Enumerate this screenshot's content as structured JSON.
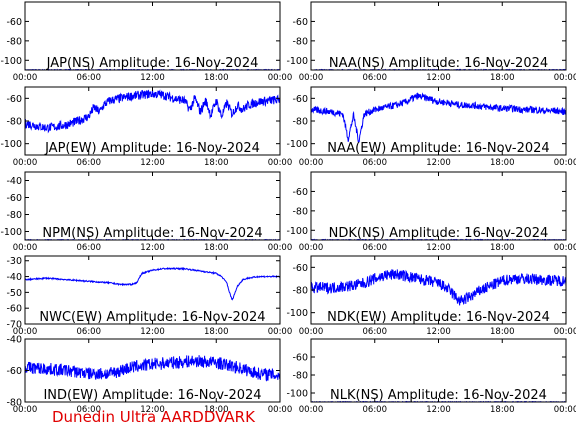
{
  "footer": "Dunedin Ultra AARDDVARK",
  "chart_data": [
    {
      "type": "line",
      "title": "JAP(NS) Amplitude: 16-Nov-2024",
      "yticks": [
        "-60",
        "-80",
        "-100"
      ],
      "ylim": [
        -110,
        -40
      ],
      "xticks": [
        "00:00",
        "06:00",
        "12:00",
        "18:00",
        "00:00"
      ],
      "xlim": [
        0,
        24
      ],
      "color": "#0000ff",
      "series": [
        {
          "x": [
            0,
            24
          ],
          "y": [
            -110,
            -110
          ],
          "noise": 0.5
        }
      ]
    },
    {
      "type": "line",
      "title": "NAA(NS) Amplitude: 16-Nov-2024",
      "yticks": [
        "-60",
        "-80",
        "-100"
      ],
      "ylim": [
        -110,
        -40
      ],
      "xticks": [
        "00:00",
        "06:00",
        "12:00",
        "18:00",
        "00:00"
      ],
      "xlim": [
        0,
        24
      ],
      "color": "#0000ff",
      "series": [
        {
          "x": [
            0,
            24
          ],
          "y": [
            -110,
            -110
          ],
          "noise": 0.5
        }
      ]
    },
    {
      "type": "line",
      "title": "JAP(EW) Amplitude: 16-Nov-2024",
      "yticks": [
        "-60",
        "-80",
        "-100"
      ],
      "ylim": [
        -110,
        -50
      ],
      "xticks": [
        "00:00",
        "06:00",
        "12:00",
        "18:00",
        "00:00"
      ],
      "xlim": [
        0,
        24
      ],
      "color": "#0000ff",
      "series": [
        {
          "x": [
            0,
            1,
            2,
            3,
            4,
            5,
            6,
            6.5,
            7,
            7.5,
            8,
            9,
            10,
            11,
            12,
            13,
            14,
            15,
            15.5,
            16,
            16.5,
            17,
            17.5,
            18,
            18.5,
            19,
            19.5,
            20,
            20.5,
            21,
            22,
            23,
            24
          ],
          "y": [
            -82,
            -84,
            -86,
            -85,
            -83,
            -80,
            -76,
            -68,
            -72,
            -65,
            -62,
            -60,
            -58,
            -57,
            -56,
            -57,
            -60,
            -62,
            -70,
            -60,
            -72,
            -62,
            -75,
            -62,
            -76,
            -64,
            -74,
            -66,
            -70,
            -66,
            -63,
            -62,
            -61
          ],
          "noise": 4
        }
      ]
    },
    {
      "type": "line",
      "title": "NAA(EW) Amplitude: 16-Nov-2024",
      "yticks": [
        "-60",
        "-80",
        "-100"
      ],
      "ylim": [
        -110,
        -50
      ],
      "xticks": [
        "00:00",
        "06:00",
        "12:00",
        "18:00",
        "00:00"
      ],
      "xlim": [
        0,
        24
      ],
      "color": "#0000ff",
      "series": [
        {
          "x": [
            0,
            2,
            3,
            3.5,
            4,
            4.5,
            5,
            6,
            7,
            8,
            9,
            10,
            11,
            12,
            13,
            14,
            15,
            16,
            17,
            18,
            19,
            20,
            21,
            22,
            23,
            24
          ],
          "y": [
            -70,
            -72,
            -74,
            -96,
            -75,
            -98,
            -74,
            -70,
            -68,
            -66,
            -63,
            -58,
            -60,
            -63,
            -64,
            -66,
            -66,
            -67,
            -68,
            -69,
            -69,
            -70,
            -70,
            -71,
            -71,
            -72
          ],
          "noise": 3
        }
      ]
    },
    {
      "type": "line",
      "title": "NPM(NS) Amplitude: 16-Nov-2024",
      "yticks": [
        "-40",
        "-60",
        "-80",
        "-100"
      ],
      "ylim": [
        -110,
        -30
      ],
      "xticks": [
        "00:00",
        "06:00",
        "12:00",
        "18:00",
        "00:00"
      ],
      "xlim": [
        0,
        24
      ],
      "color": "#0000ff",
      "series": [
        {
          "x": [
            0,
            24
          ],
          "y": [
            -110,
            -110
          ],
          "noise": 0.5
        }
      ]
    },
    {
      "type": "line",
      "title": "NDK(NS) Amplitude: 16-Nov-2024",
      "yticks": [
        "-60",
        "-80",
        "-100"
      ],
      "ylim": [
        -110,
        -40
      ],
      "xticks": [
        "00:00",
        "06:00",
        "12:00",
        "18:00",
        "00:00"
      ],
      "xlim": [
        0,
        24
      ],
      "color": "#0000ff",
      "series": [
        {
          "x": [
            0,
            24
          ],
          "y": [
            -110,
            -110
          ],
          "noise": 0.5
        }
      ]
    },
    {
      "type": "line",
      "title": "NWC(EW) Amplitude: 16-Nov-2024",
      "yticks": [
        "-30",
        "-40",
        "-50",
        "-60",
        "-70"
      ],
      "ylim": [
        -70,
        -27
      ],
      "xticks": [
        "00:00",
        "06:00",
        "12:00",
        "18:00",
        "00:00"
      ],
      "xlim": [
        0,
        24
      ],
      "color": "#0000ff",
      "series": [
        {
          "x": [
            0,
            2,
            4,
            6,
            8,
            9,
            10,
            10.5,
            11,
            12,
            13,
            14,
            15,
            16,
            17,
            18,
            18.5,
            19,
            19.2,
            19.5,
            20,
            20.5,
            21,
            22,
            23,
            24
          ],
          "y": [
            -42,
            -41,
            -42,
            -43,
            -44,
            -45,
            -45,
            -44,
            -38,
            -36,
            -35,
            -35,
            -35,
            -36,
            -37,
            -38,
            -40,
            -44,
            -49,
            -55,
            -46,
            -42,
            -41,
            -40,
            -40,
            -40
          ],
          "noise": 0.4
        }
      ]
    },
    {
      "type": "line",
      "title": "NDK(EW) Amplitude: 16-Nov-2024",
      "yticks": [
        "-60",
        "-80",
        "-100"
      ],
      "ylim": [
        -110,
        -50
      ],
      "xticks": [
        "00:00",
        "06:00",
        "12:00",
        "18:00",
        "00:00"
      ],
      "xlim": [
        0,
        24
      ],
      "color": "#0000ff",
      "series": [
        {
          "x": [
            0,
            2,
            4,
            5,
            6,
            7,
            8,
            9,
            10,
            11,
            12,
            13,
            14,
            15,
            16,
            17,
            18,
            19,
            20,
            22,
            24
          ],
          "y": [
            -78,
            -78,
            -76,
            -74,
            -70,
            -67,
            -66,
            -68,
            -70,
            -72,
            -74,
            -80,
            -90,
            -86,
            -80,
            -76,
            -72,
            -70,
            -70,
            -71,
            -72
          ],
          "noise": 5
        }
      ]
    },
    {
      "type": "line",
      "title": "IND(EW) Amplitude: 16-Nov-2024",
      "yticks": [
        "-40",
        "-60",
        "-80"
      ],
      "ylim": [
        -80,
        -40
      ],
      "xticks": [
        "00:00",
        "06:00",
        "12:00",
        "18:00",
        "00:00"
      ],
      "xlim": [
        0,
        24
      ],
      "color": "#0000ff",
      "series": [
        {
          "x": [
            0,
            2,
            4,
            5,
            6,
            8,
            9,
            10,
            11,
            12,
            14,
            16,
            18,
            20,
            22,
            24
          ],
          "y": [
            -58,
            -59,
            -60,
            -61,
            -62,
            -62,
            -60,
            -58,
            -57,
            -56,
            -55,
            -54,
            -55,
            -58,
            -62,
            -63
          ],
          "noise": 4
        }
      ]
    },
    {
      "type": "line",
      "title": "NLK(NS) Amplitude: 16-Nov-2024",
      "yticks": [
        "-60",
        "-80",
        "-100"
      ],
      "ylim": [
        -110,
        -40
      ],
      "xticks": [
        "00:00",
        "06:00",
        "12:00",
        "18:00",
        "00:00"
      ],
      "xlim": [
        0,
        24
      ],
      "color": "#0000ff",
      "series": [
        {
          "x": [
            0,
            24
          ],
          "y": [
            -110,
            -110
          ],
          "noise": 0.5
        }
      ]
    }
  ]
}
